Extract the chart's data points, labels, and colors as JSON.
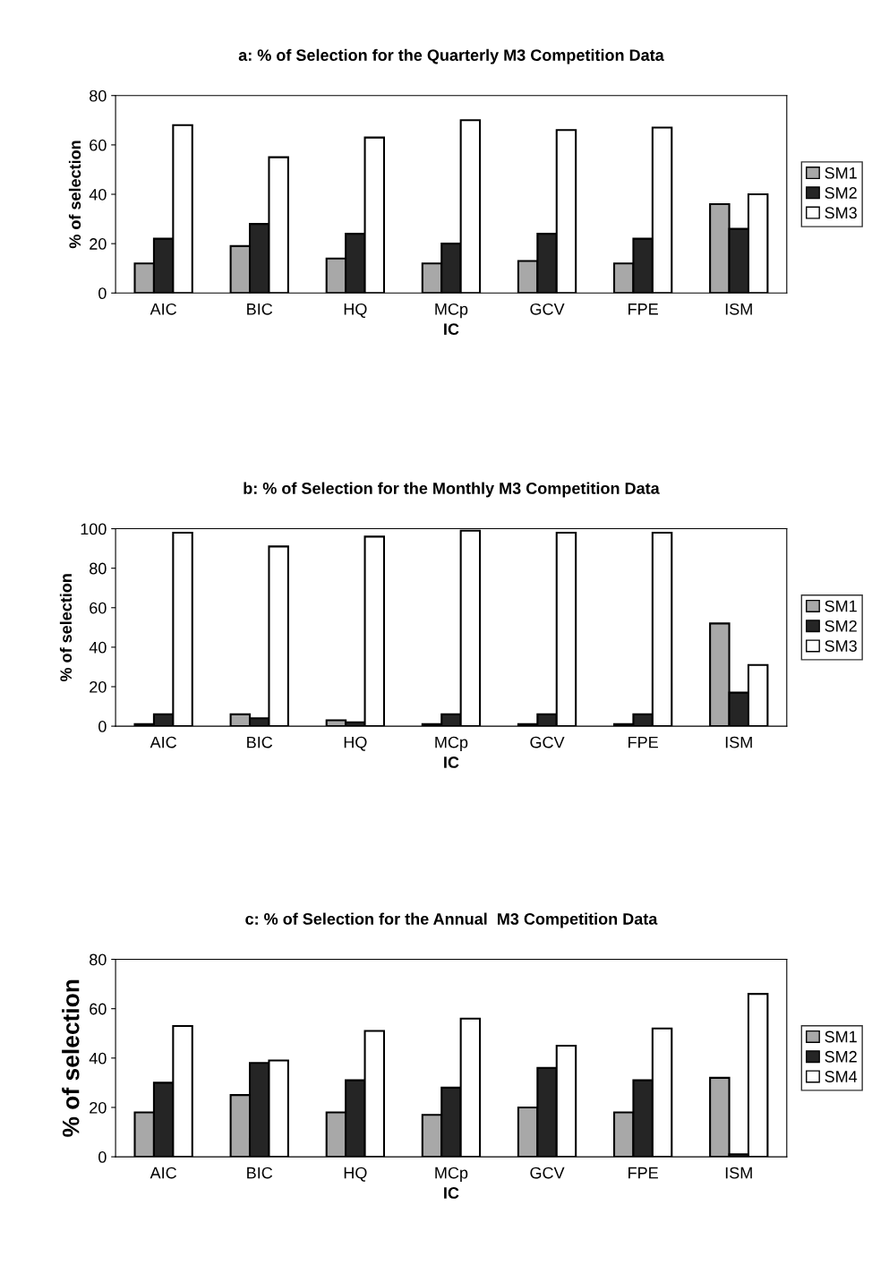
{
  "chart_data": [
    {
      "type": "bar",
      "title": "a: % of Selection for the Quarterly M3 Competition Data",
      "xlabel": "IC",
      "ylabel": "% of selection",
      "categories": [
        "AIC",
        "BIC",
        "HQ",
        "MCp",
        "GCV",
        "FPE",
        "ISM"
      ],
      "ylim": [
        0,
        80
      ],
      "yticks": [
        0,
        20,
        40,
        60,
        80
      ],
      "grid": false,
      "legend": "right",
      "series": [
        {
          "name": "SM1",
          "color": "#a8a8a8",
          "values": [
            12,
            19,
            14,
            12,
            13,
            12,
            36
          ]
        },
        {
          "name": "SM2",
          "color": "#252525",
          "values": [
            22,
            28,
            24,
            20,
            24,
            22,
            26
          ]
        },
        {
          "name": "SM3",
          "color": "#ffffff",
          "values": [
            68,
            55,
            63,
            70,
            66,
            67,
            40
          ]
        }
      ]
    },
    {
      "type": "bar",
      "title": "b: % of Selection for the Monthly M3 Competition Data",
      "xlabel": "IC",
      "ylabel": "% of selection",
      "categories": [
        "AIC",
        "BIC",
        "HQ",
        "MCp",
        "GCV",
        "FPE",
        "ISM"
      ],
      "ylim": [
        0,
        100
      ],
      "yticks": [
        0,
        20,
        40,
        60,
        80,
        100
      ],
      "grid": false,
      "legend": "right",
      "series": [
        {
          "name": "SM1",
          "color": "#a8a8a8",
          "values": [
            1,
            6,
            3,
            1,
            1,
            1,
            52
          ]
        },
        {
          "name": "SM2",
          "color": "#252525",
          "values": [
            6,
            4,
            2,
            6,
            6,
            6,
            17
          ]
        },
        {
          "name": "SM3",
          "color": "#ffffff",
          "values": [
            98,
            91,
            96,
            99,
            98,
            98,
            31
          ]
        }
      ]
    },
    {
      "type": "bar",
      "title": "c: % of Selection for the Annual  M3 Competition Data",
      "xlabel": "IC",
      "ylabel": "% of selection",
      "categories": [
        "AIC",
        "BIC",
        "HQ",
        "MCp",
        "GCV",
        "FPE",
        "ISM"
      ],
      "ylim": [
        0,
        80
      ],
      "yticks": [
        0,
        20,
        40,
        60,
        80
      ],
      "grid": false,
      "legend": "right",
      "series": [
        {
          "name": "SM1",
          "color": "#a8a8a8",
          "values": [
            18,
            25,
            18,
            17,
            20,
            18,
            32
          ]
        },
        {
          "name": "SM2",
          "color": "#252525",
          "values": [
            30,
            38,
            31,
            28,
            36,
            31,
            1
          ]
        },
        {
          "name": "SM4",
          "color": "#ffffff",
          "values": [
            53,
            39,
            51,
            56,
            45,
            52,
            66
          ]
        }
      ]
    }
  ]
}
